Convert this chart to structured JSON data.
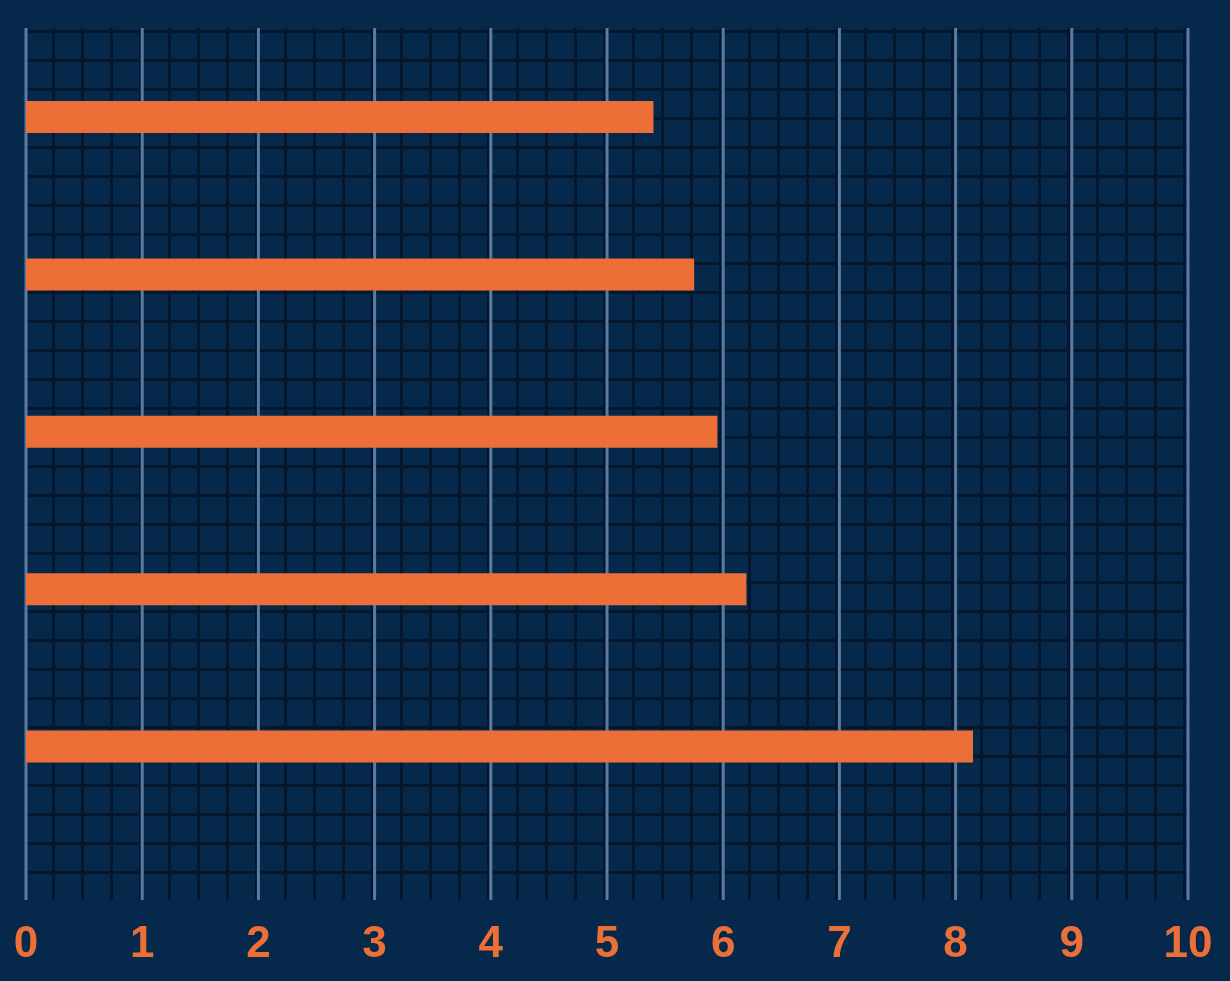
{
  "chart_data": {
    "type": "bar",
    "orientation": "horizontal",
    "categories": [
      null,
      null,
      null,
      null,
      null
    ],
    "values": [
      5.4,
      5.75,
      5.95,
      6.2,
      8.15
    ],
    "color": "#ed6f38",
    "xlim": [
      0,
      10
    ],
    "xticks": [
      0,
      1,
      2,
      3,
      4,
      5,
      6,
      7,
      8,
      9,
      10
    ],
    "grid": "x",
    "tick_labels": "x"
  }
}
